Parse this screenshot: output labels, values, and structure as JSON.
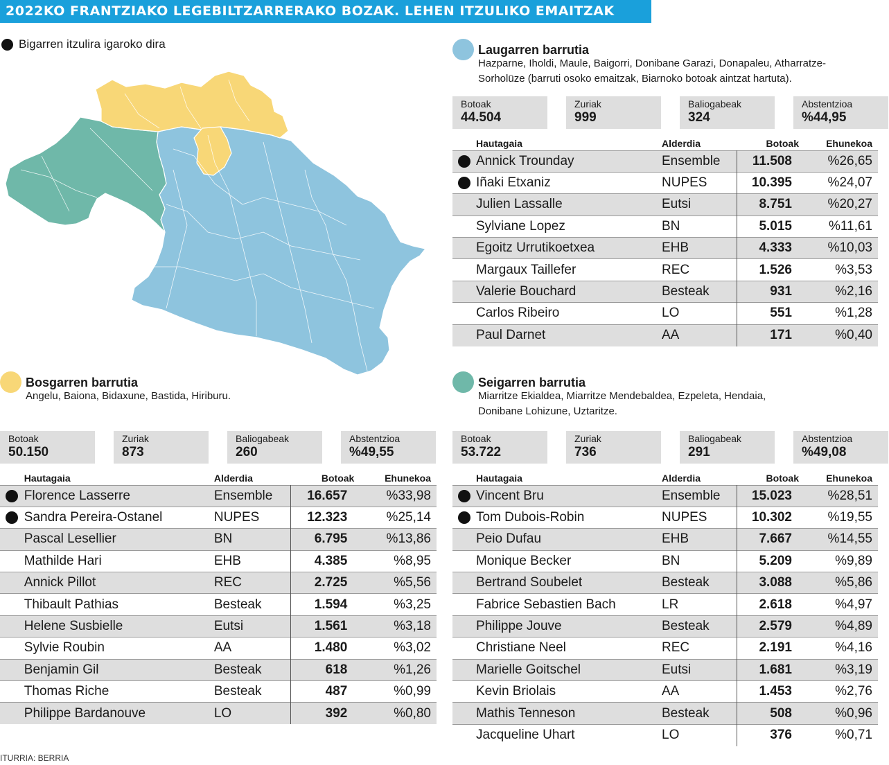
{
  "title": "2022KO FRANTZIAKO LEGEBILTZARRERAKO BOZAK. LEHEN ITZULIKO EMAITZAK",
  "legend": "Bigarren itzulira igaroko dira",
  "source": "ITURRIA: BERRIA",
  "colors": {
    "title": "#1aa0db",
    "blue": "#8ec4de",
    "yellow": "#f8d777",
    "teal": "#6fb8a9"
  },
  "columns": {
    "candidate": "Hautagaia",
    "party": "Alderdia",
    "votes": "Botoak",
    "percent": "Ehunekoa"
  },
  "stat_labels": {
    "votes": "Botoak",
    "blank": "Zuriak",
    "null": "Baliogabeak",
    "abstention": "Abstentzioa"
  },
  "fourth": {
    "name": "Laugarren barrutia",
    "desc_line1": "Hazparne, Iholdi, Maule, Baigorri, Donibane Garazi, Donapaleu, Atharratze-",
    "desc_line2": "Sorholüze (barruti osoko emaitzak, Biarnoko botoak aintzat hartuta).",
    "stats": {
      "votes": "44.504",
      "blank": "999",
      "null": "324",
      "abstention": "%44,95"
    },
    "rows": [
      {
        "name": "Annick Trounday",
        "party": "Ensemble",
        "votes": "11.508",
        "pct": "%26,65",
        "advance": true
      },
      {
        "name": "Iñaki Etxaniz",
        "party": "NUPES",
        "votes": "10.395",
        "pct": "%24,07",
        "advance": true
      },
      {
        "name": "Julien Lassalle",
        "party": "Eutsi",
        "votes": "8.751",
        "pct": "%20,27",
        "advance": false
      },
      {
        "name": "Sylviane Lopez",
        "party": "BN",
        "votes": "5.015",
        "pct": "%11,61",
        "advance": false
      },
      {
        "name": "Egoitz Urrutikoetxea",
        "party": "EHB",
        "votes": "4.333",
        "pct": "%10,03",
        "advance": false
      },
      {
        "name": "Margaux Taillefer",
        "party": "REC",
        "votes": "1.526",
        "pct": "%3,53",
        "advance": false
      },
      {
        "name": "Valerie Bouchard",
        "party": "Besteak",
        "votes": "931",
        "pct": "%2,16",
        "advance": false
      },
      {
        "name": "Carlos Ribeiro",
        "party": "LO",
        "votes": "551",
        "pct": "%1,28",
        "advance": false
      },
      {
        "name": "Paul Darnet",
        "party": "AA",
        "votes": "171",
        "pct": "%0,40",
        "advance": false
      }
    ]
  },
  "fifth": {
    "name": "Bosgarren barrutia",
    "desc_line1": "Angelu, Baiona, Bidaxune, Bastida, Hiriburu.",
    "desc_line2": "",
    "stats": {
      "votes": "50.150",
      "blank": "873",
      "null": "260",
      "abstention": "%49,55"
    },
    "rows": [
      {
        "name": "Florence Lasserre",
        "party": "Ensemble",
        "votes": "16.657",
        "pct": "%33,98",
        "advance": true
      },
      {
        "name": "Sandra Pereira-Ostanel",
        "party": "NUPES",
        "votes": "12.323",
        "pct": "%25,14",
        "advance": true
      },
      {
        "name": "Pascal Lesellier",
        "party": "BN",
        "votes": "6.795",
        "pct": "%13,86",
        "advance": false
      },
      {
        "name": "Mathilde Hari",
        "party": "EHB",
        "votes": "4.385",
        "pct": "%8,95",
        "advance": false
      },
      {
        "name": "Annick Pillot",
        "party": "REC",
        "votes": "2.725",
        "pct": "%5,56",
        "advance": false
      },
      {
        "name": "Thibault Pathias",
        "party": "Besteak",
        "votes": "1.594",
        "pct": "%3,25",
        "advance": false
      },
      {
        "name": "Helene Susbielle",
        "party": "Eutsi",
        "votes": "1.561",
        "pct": "%3,18",
        "advance": false
      },
      {
        "name": "Sylvie Roubin",
        "party": "AA",
        "votes": "1.480",
        "pct": "%3,02",
        "advance": false
      },
      {
        "name": "Benjamin Gil",
        "party": "Besteak",
        "votes": "618",
        "pct": "%1,26",
        "advance": false
      },
      {
        "name": "Thomas Riche",
        "party": "Besteak",
        "votes": "487",
        "pct": "%0,99",
        "advance": false
      },
      {
        "name": "Philippe Bardanouve",
        "party": "LO",
        "votes": "392",
        "pct": "%0,80",
        "advance": false
      }
    ]
  },
  "sixth": {
    "name": "Seigarren barrutia",
    "desc_line1": "Miarritze Ekialdea, Miarritze Mendebaldea, Ezpeleta, Hendaia,",
    "desc_line2": "Donibane Lohizune, Uztaritze.",
    "stats": {
      "votes": "53.722",
      "blank": "736",
      "null": "291",
      "abstention": "%49,08"
    },
    "rows": [
      {
        "name": "Vincent Bru",
        "party": "Ensemble",
        "votes": "15.023",
        "pct": "%28,51",
        "advance": true
      },
      {
        "name": "Tom Dubois-Robin",
        "party": "NUPES",
        "votes": "10.302",
        "pct": "%19,55",
        "advance": true
      },
      {
        "name": "Peio Dufau",
        "party": "EHB",
        "votes": "7.667",
        "pct": "%14,55",
        "advance": false
      },
      {
        "name": "Monique Becker",
        "party": "BN",
        "votes": "5.209",
        "pct": "%9,89",
        "advance": false
      },
      {
        "name": "Bertrand Soubelet",
        "party": "Besteak",
        "votes": "3.088",
        "pct": "%5,86",
        "advance": false
      },
      {
        "name": "Fabrice Sebastien Bach",
        "party": "LR",
        "votes": "2.618",
        "pct": "%4,97",
        "advance": false
      },
      {
        "name": "Philippe Jouve",
        "party": "Besteak",
        "votes": "2.579",
        "pct": "%4,89",
        "advance": false
      },
      {
        "name": "Christiane Neel",
        "party": "REC",
        "votes": "2.191",
        "pct": "%4,16",
        "advance": false
      },
      {
        "name": "Marielle Goitschel",
        "party": "Eutsi",
        "votes": "1.681",
        "pct": "%3,19",
        "advance": false
      },
      {
        "name": "Kevin Briolais",
        "party": "AA",
        "votes": "1.453",
        "pct": "%2,76",
        "advance": false
      },
      {
        "name": "Mathis Tenneson",
        "party": "Besteak",
        "votes": "508",
        "pct": "%0,96",
        "advance": false
      },
      {
        "name": "Jacqueline Uhart",
        "party": "LO",
        "votes": "376",
        "pct": "%0,71",
        "advance": false
      }
    ]
  }
}
